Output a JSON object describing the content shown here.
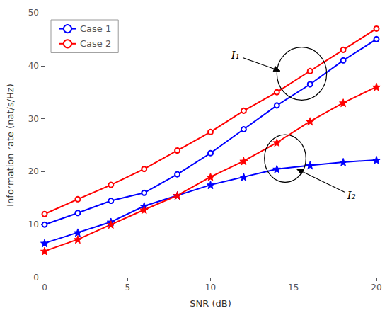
{
  "chart_data": {
    "type": "line",
    "xlabel": "SNR (dB)",
    "ylabel": "Information rate (nat/s/Hz)",
    "x": [
      0,
      2,
      4,
      6,
      8,
      10,
      12,
      14,
      16,
      18,
      20
    ],
    "series": [
      {
        "name": "Case 1",
        "color": "#0000FF",
        "marker": "circle",
        "values": [
          10.0,
          12.2,
          14.5,
          16.0,
          19.5,
          23.5,
          28.0,
          32.5,
          36.5,
          41.0,
          45.0
        ]
      },
      {
        "name": "Case 1",
        "color": "#0000FF",
        "marker": "star",
        "values": [
          6.5,
          8.5,
          10.5,
          13.5,
          15.5,
          17.5,
          19.0,
          20.5,
          21.2,
          21.8,
          22.2
        ]
      },
      {
        "name": "Case 2",
        "color": "#FF0000",
        "marker": "circle",
        "values": [
          12.0,
          14.8,
          17.5,
          20.5,
          24.0,
          27.5,
          31.5,
          35.0,
          39.0,
          43.0,
          47.0
        ]
      },
      {
        "name": "Case 2",
        "color": "#FF0000",
        "marker": "star",
        "values": [
          5.0,
          7.2,
          10.0,
          12.8,
          15.5,
          19.0,
          22.0,
          25.5,
          29.5,
          33.0,
          36.0
        ]
      }
    ],
    "xlim": [
      0,
      20
    ],
    "xticks": [
      0,
      5,
      10,
      15,
      20
    ],
    "ylim": [
      0,
      50
    ],
    "yticks": [
      0,
      10,
      20,
      30,
      40,
      50
    ],
    "grid": false,
    "legend": "upper left",
    "annotations": [
      {
        "text": "I₁",
        "x": 11.5,
        "y": 42.0,
        "arrow_x": 14.2,
        "arrow_y": 39.0,
        "ellipse": {
          "x": 15.5,
          "y": 38.5,
          "width": 3.0,
          "height": 10.0
        }
      },
      {
        "text": "I₂",
        "x": 18.5,
        "y": 15.5,
        "arrow_x": 15.2,
        "arrow_y": 20.5,
        "ellipse": {
          "x": 14.5,
          "y": 22.5,
          "width": 2.5,
          "height": 9.0
        }
      }
    ]
  }
}
